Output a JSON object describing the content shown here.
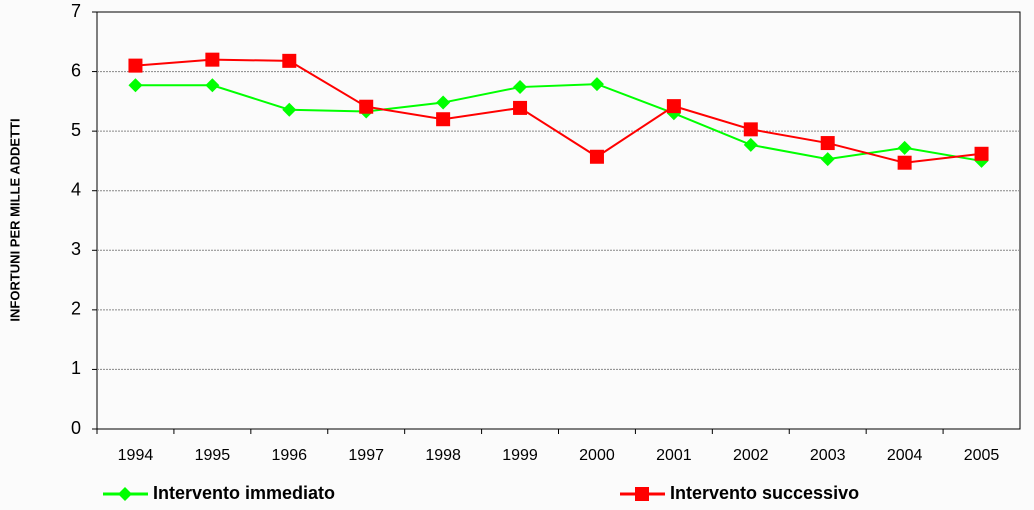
{
  "chart_data": {
    "type": "line",
    "y_label": "INFORTUNI PER MILLE ADDETTI",
    "categories": [
      "1994",
      "1995",
      "1996",
      "1997",
      "1998",
      "1999",
      "2000",
      "2001",
      "2002",
      "2003",
      "2004",
      "2005"
    ],
    "series": [
      {
        "name": "Intervento immediato",
        "color": "#00ff00",
        "marker": "diamond",
        "values": [
          5.77,
          5.77,
          5.36,
          5.33,
          5.48,
          5.74,
          5.79,
          5.3,
          4.77,
          4.53,
          4.72,
          4.5
        ]
      },
      {
        "name": "Intervento successivo",
        "color": "#ff0000",
        "marker": "square",
        "values": [
          6.1,
          6.2,
          6.18,
          5.41,
          5.2,
          5.39,
          4.57,
          5.42,
          5.03,
          4.8,
          4.47,
          4.62
        ]
      }
    ],
    "ylim": [
      0,
      7
    ],
    "yticks": [
      0,
      1,
      2,
      3,
      4,
      5,
      6,
      7
    ],
    "grid": true,
    "legend": "bottom"
  }
}
